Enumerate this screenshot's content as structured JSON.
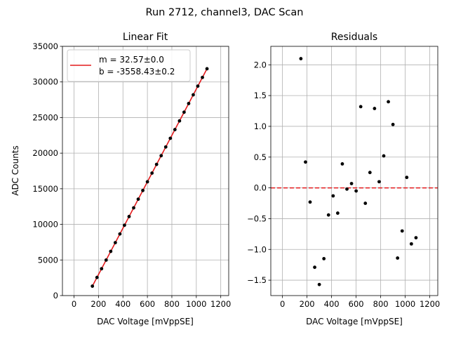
{
  "figure": {
    "suptitle": "Run 2712, channel3, DAC Scan"
  },
  "chart_data": [
    {
      "type": "scatter",
      "title": "Linear Fit",
      "xlabel": "DAC Voltage [mVppSE]",
      "ylabel": "ADC Counts",
      "xlim": [
        -95,
        1265
      ],
      "ylim": [
        0,
        35000
      ],
      "xticks": [
        0,
        200,
        400,
        600,
        800,
        1000,
        1200
      ],
      "yticks": [
        0,
        5000,
        10000,
        15000,
        20000,
        25000,
        30000,
        35000
      ],
      "grid": true,
      "legend": {
        "placement": "upper-left",
        "entries": [
          "m = 32.57±0.0",
          "b = -3558.43±0.2"
        ]
      },
      "series": [
        {
          "kind": "points",
          "color": "#000000",
          "x": [
            150,
            187.5,
            225,
            262.5,
            300,
            337.5,
            375,
            412.5,
            450,
            487.5,
            525,
            562.5,
            600,
            637.5,
            675,
            712.5,
            750,
            787.5,
            825,
            862.5,
            900,
            937.5,
            975,
            1012.5,
            1050,
            1087.5
          ],
          "y": [
            1327,
            2548,
            3769,
            4990,
            6212,
            7433,
            8655,
            9876,
            11097,
            12318,
            13539,
            14760,
            15982,
            17203,
            18424,
            19645,
            20866,
            22087,
            23309,
            24530,
            25751,
            26972,
            28193,
            29414,
            30635,
            31856
          ]
        },
        {
          "kind": "line",
          "color": "#e41a1c",
          "x": [
            150,
            1087.5
          ],
          "y": [
            1327,
            31856
          ]
        }
      ]
    },
    {
      "type": "scatter",
      "title": "Residuals",
      "xlabel": "DAC Voltage [mVppSE]",
      "ylabel": "",
      "xlim": [
        -95,
        1265
      ],
      "ylim": [
        -1.75,
        2.3
      ],
      "xticks": [
        0,
        200,
        400,
        600,
        800,
        1000,
        1200
      ],
      "yticks": [
        -1.5,
        -1.0,
        -0.5,
        0.0,
        0.5,
        1.0,
        1.5,
        2.0
      ],
      "grid": true,
      "reference_line": {
        "y": 0,
        "style": "dashed",
        "color": "#e41a1c"
      },
      "series": [
        {
          "kind": "points",
          "color": "#000000",
          "x": [
            150,
            187.5,
            225,
            262.5,
            300,
            337.5,
            375,
            412.5,
            450,
            487.5,
            525,
            562.5,
            600,
            637.5,
            675,
            712.5,
            750,
            787.5,
            825,
            862.5,
            900,
            937.5,
            975,
            1012.5,
            1050,
            1087.5
          ],
          "y": [
            2.1,
            0.42,
            -0.23,
            -1.29,
            -1.57,
            -1.15,
            -0.44,
            -0.13,
            -0.41,
            0.39,
            -0.02,
            0.07,
            -0.05,
            1.32,
            -0.25,
            0.25,
            1.29,
            0.1,
            0.52,
            1.4,
            1.03,
            -1.14,
            -0.7,
            0.17,
            -0.91,
            -0.81
          ]
        }
      ]
    }
  ]
}
